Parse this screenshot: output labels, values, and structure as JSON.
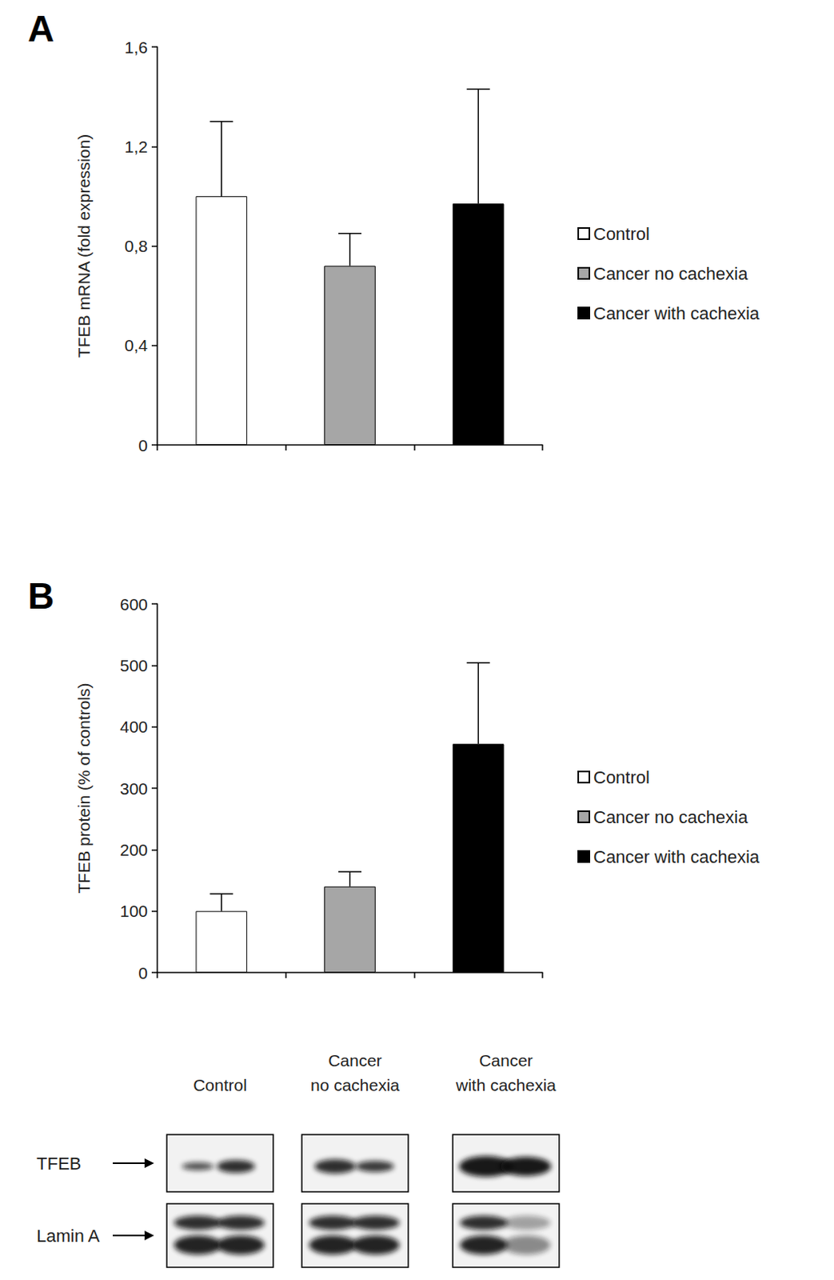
{
  "chart_data": [
    {
      "type": "bar",
      "title": "A",
      "categories": [
        "Control",
        "Cancer no cachexia",
        "Cancer with cachexia"
      ],
      "values": [
        1.0,
        0.72,
        0.97
      ],
      "errors": [
        0.3,
        0.13,
        0.46
      ],
      "colors": [
        "#ffffff",
        "#a6a6a6",
        "#000000"
      ],
      "ylabel": "TFEB mRNA (fold expression)",
      "ylim": [
        0,
        1.6
      ],
      "yticks": [
        0,
        {
          "value": 0.4,
          "label": "0,4"
        },
        {
          "value": 0.8,
          "label": "0,8"
        },
        {
          "value": 1.2,
          "label": "1,2"
        },
        {
          "value": 1.6,
          "label": "1,6"
        }
      ],
      "grid": false,
      "legend": "right",
      "tick_labels": "y"
    },
    {
      "type": "bar",
      "title": "B",
      "categories": [
        "Control",
        "Cancer no cachexia",
        "Cancer with cachexia"
      ],
      "values": [
        100,
        140,
        372
      ],
      "errors": [
        28,
        24,
        132
      ],
      "colors": [
        "#ffffff",
        "#a6a6a6",
        "#000000"
      ],
      "ylabel": "TFEB protein (% of controls)",
      "ylim": [
        0,
        600
      ],
      "yticks": [
        0,
        100,
        200,
        300,
        400,
        500,
        600
      ],
      "grid": false,
      "legend": "right",
      "tick_labels": "y"
    }
  ],
  "blot": {
    "lanes": [
      [
        "Control"
      ],
      [
        "Cancer",
        "no cachexia"
      ],
      [
        "Cancer",
        "with cachexia"
      ]
    ],
    "rows": [
      "TFEB",
      "Lamin A"
    ]
  }
}
